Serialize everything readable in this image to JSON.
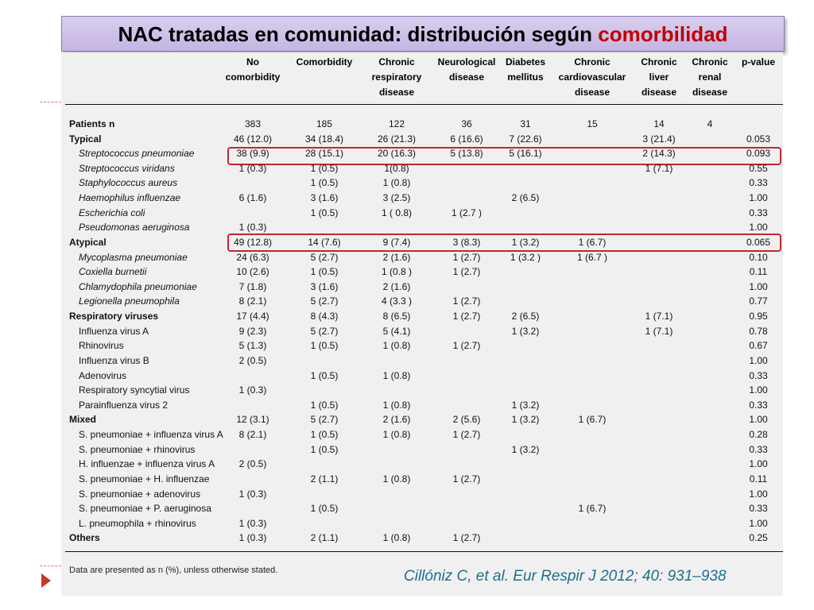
{
  "slide": {
    "title_main": "NAC tratadas en comunidad: distribución según",
    "title_accent": "comorbilidad",
    "citation": "Cillóniz C, et al. Eur Respir J 2012; 40: 931–938",
    "accent_color": "#c00000",
    "banner_color": "#c4b5e2"
  },
  "table": {
    "columns": [
      [
        "No",
        "comorbidity"
      ],
      [
        "Comorbidity"
      ],
      [
        "Chronic",
        "respiratory",
        "disease"
      ],
      [
        "Neurological",
        "disease"
      ],
      [
        "Diabetes",
        "mellitus"
      ],
      [
        "Chronic",
        "cardiovascular",
        "disease"
      ],
      [
        "Chronic",
        "liver",
        "disease"
      ],
      [
        "Chronic",
        "renal",
        "disease"
      ],
      [
        "p-value"
      ]
    ],
    "rows": [
      {
        "label": "Patients n",
        "style": "b",
        "cells": [
          "383",
          "185",
          "122",
          "36",
          "31",
          "15",
          "14",
          "4",
          ""
        ]
      },
      {
        "label": "Typical",
        "style": "b",
        "cells": [
          "46 (12.0)",
          "34 (18.4)",
          "26 (21.3)",
          "6 (16.6)",
          "7 (22.6)",
          "",
          "3 (21.4)",
          "",
          "0.053"
        ]
      },
      {
        "label": "Streptococcus pneumoniae",
        "style": "it",
        "cells": [
          "38 (9.9)",
          "28 (15.1)",
          "20 (16.3)",
          "5 (13.8)",
          "5 (16.1)",
          "",
          "2 (14.3)",
          "",
          "0.093"
        ]
      },
      {
        "label": "Streptococcus viridans",
        "style": "it",
        "cells": [
          "1 (0.3)",
          "1 (0.5)",
          "1(0.8)",
          "",
          "",
          "",
          "1 (7.1)",
          "",
          "0.55"
        ]
      },
      {
        "label": "Staphylococcus aureus",
        "style": "it",
        "cells": [
          "",
          "1 (0.5)",
          "1 (0.8)",
          "",
          "",
          "",
          "",
          "",
          "0.33"
        ]
      },
      {
        "label": "Haemophilus influenzae",
        "style": "it",
        "cells": [
          "6 (1.6)",
          "3 (1.6)",
          "3 (2.5)",
          "",
          "2 (6.5)",
          "",
          "",
          "",
          "1.00"
        ]
      },
      {
        "label": "Escherichia coli",
        "style": "it",
        "cells": [
          "",
          "1 (0.5)",
          "1 ( 0.8)",
          "1 (2.7 )",
          "",
          "",
          "",
          "",
          "0.33"
        ]
      },
      {
        "label": "Pseudomonas aeruginosa",
        "style": "it",
        "cells": [
          "1 (0.3)",
          "",
          "",
          "",
          "",
          "",
          "",
          "",
          "1.00"
        ]
      },
      {
        "label": "Atypical",
        "style": "b",
        "cells": [
          "49 (12.8)",
          "14 (7.6)",
          "9 (7.4)",
          "3 (8.3)",
          "1 (3.2)",
          "1 (6.7)",
          "",
          "",
          "0.065"
        ]
      },
      {
        "label": "Mycoplasma pneumoniae",
        "style": "it",
        "cells": [
          "24 (6.3)",
          "5 (2.7)",
          "2 (1.6)",
          "1 (2.7)",
          "1 (3.2 )",
          "1 (6.7 )",
          "",
          "",
          "0.10"
        ]
      },
      {
        "label": "Coxiella burnetii",
        "style": "it",
        "cells": [
          "10 (2.6)",
          "1 (0.5)",
          "1 (0.8 )",
          "1 (2.7)",
          "",
          "",
          "",
          "",
          "0.11"
        ]
      },
      {
        "label": "Chlamydophila pneumoniae",
        "style": "it",
        "cells": [
          "7 (1.8)",
          "3 (1.6)",
          "2 (1.6)",
          "",
          "",
          "",
          "",
          "",
          "1.00"
        ]
      },
      {
        "label": "Legionella pneumophila",
        "style": "it",
        "cells": [
          "8 (2.1)",
          "5 (2.7)",
          "4 (3.3 )",
          "1 (2.7)",
          "",
          "",
          "",
          "",
          "0.77"
        ]
      },
      {
        "label": "Respiratory viruses",
        "style": "b",
        "cells": [
          "17 (4.4)",
          "8 (4.3)",
          "8 (6.5)",
          "1 (2.7)",
          "2 (6.5)",
          "",
          "1 (7.1)",
          "",
          "0.95"
        ]
      },
      {
        "label": "Influenza virus A",
        "style": "ind",
        "cells": [
          "9 (2.3)",
          "5 (2.7)",
          "5 (4.1)",
          "",
          "1 (3.2)",
          "",
          "1 (7.1)",
          "",
          "0.78"
        ]
      },
      {
        "label": "Rhinovirus",
        "style": "ind",
        "cells": [
          "5 (1.3)",
          "1 (0.5)",
          "1 (0.8)",
          "1 (2.7)",
          "",
          "",
          "",
          "",
          "0.67"
        ]
      },
      {
        "label": "Influenza virus B",
        "style": "ind",
        "cells": [
          "2 (0.5)",
          "",
          "",
          "",
          "",
          "",
          "",
          "",
          "1.00"
        ]
      },
      {
        "label": "Adenovirus",
        "style": "ind",
        "cells": [
          "",
          "1 (0.5)",
          "1 (0.8)",
          "",
          "",
          "",
          "",
          "",
          "0.33"
        ]
      },
      {
        "label": "Respiratory syncytial virus",
        "style": "ind",
        "cells": [
          "1 (0.3)",
          "",
          "",
          "",
          "",
          "",
          "",
          "",
          "1.00"
        ]
      },
      {
        "label": "Parainfluenza virus 2",
        "style": "ind",
        "cells": [
          "",
          "1 (0.5)",
          "1 (0.8)",
          "",
          "1 (3.2)",
          "",
          "",
          "",
          "0.33"
        ]
      },
      {
        "label": "Mixed",
        "style": "b",
        "cells": [
          "12 (3.1)",
          "5 (2.7)",
          "2 (1.6)",
          "2 (5.6)",
          "1 (3.2)",
          "1 (6.7)",
          "",
          "",
          "1.00"
        ]
      },
      {
        "label": "S. pneumoniae + influenza virus A",
        "style": "ind",
        "cells": [
          "8 (2.1)",
          "1 (0.5)",
          "1 (0.8)",
          "1 (2.7)",
          "",
          "",
          "",
          "",
          "0.28"
        ]
      },
      {
        "label": "S. pneumoniae + rhinovirus",
        "style": "ind",
        "cells": [
          "",
          "1 (0.5)",
          "",
          "",
          "1 (3.2)",
          "",
          "",
          "",
          "0.33"
        ]
      },
      {
        "label": "H. influenzae + influenza virus A",
        "style": "ind",
        "cells": [
          "2 (0.5)",
          "",
          "",
          "",
          "",
          "",
          "",
          "",
          "1.00"
        ]
      },
      {
        "label": "S. pneumoniae + H. influenzae",
        "style": "ind",
        "cells": [
          "",
          "2 (1.1)",
          "1 (0.8)",
          "1 (2.7)",
          "",
          "",
          "",
          "",
          "0.11"
        ]
      },
      {
        "label": "S. pneumoniae + adenovirus",
        "style": "ind",
        "cells": [
          "1 (0.3)",
          "",
          "",
          "",
          "",
          "",
          "",
          "",
          "1.00"
        ]
      },
      {
        "label": "S. pneumoniae + P. aeruginosa",
        "style": "ind",
        "cells": [
          "",
          "1 (0.5)",
          "",
          "",
          "",
          "1 (6.7)",
          "",
          "",
          "0.33"
        ]
      },
      {
        "label": "L. pneumophila + rhinovirus",
        "style": "ind",
        "cells": [
          "1 (0.3)",
          "",
          "",
          "",
          "",
          "",
          "",
          "",
          "1.00"
        ]
      },
      {
        "label": "Others",
        "style": "b",
        "cells": [
          "1 (0.3)",
          "2 (1.1)",
          "1 (0.8)",
          "1 (2.7)",
          "",
          "",
          "",
          "",
          "0.25"
        ]
      }
    ],
    "note": "Data are presented as n (%), unless otherwise stated."
  }
}
